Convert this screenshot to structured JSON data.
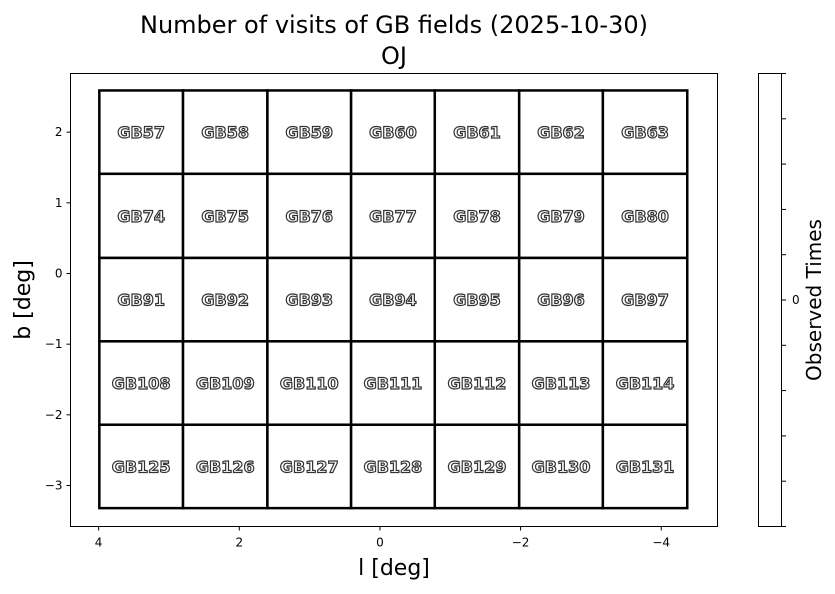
{
  "chart_data": {
    "type": "heatmap",
    "title": "Number of visits of GB fields (2025-10-30)",
    "subtitle": "OJ",
    "xlabel": "l [deg]",
    "ylabel": "b [deg]",
    "xlim": [
      4.4,
      -4.8
    ],
    "ylim": [
      -3.58,
      2.83
    ],
    "x_ticks": [
      4,
      2,
      0,
      -2,
      -4
    ],
    "x_tick_labels": [
      "4",
      "2",
      "0",
      "−2",
      "−4"
    ],
    "y_ticks": [
      2,
      1,
      0,
      -1,
      -2,
      -3
    ],
    "y_tick_labels": [
      "2",
      "1",
      "0",
      "−1",
      "−2",
      "−3"
    ],
    "grid": false,
    "l_edges": [
      3.99,
      2.8,
      1.6,
      0.41,
      -0.78,
      -1.98,
      -3.17,
      -4.37
    ],
    "b_edges": [
      2.59,
      1.41,
      0.22,
      -0.96,
      -2.14,
      -3.32
    ],
    "fields": [
      [
        "GB57",
        "GB58",
        "GB59",
        "GB60",
        "GB61",
        "GB62",
        "GB63"
      ],
      [
        "GB74",
        "GB75",
        "GB76",
        "GB77",
        "GB78",
        "GB79",
        "GB80"
      ],
      [
        "GB91",
        "GB92",
        "GB93",
        "GB94",
        "GB95",
        "GB96",
        "GB97"
      ],
      [
        "GB108",
        "GB109",
        "GB110",
        "GB111",
        "GB112",
        "GB113",
        "GB114"
      ],
      [
        "GB125",
        "GB126",
        "GB127",
        "GB128",
        "GB129",
        "GB130",
        "GB131"
      ]
    ],
    "values_all": 0,
    "colorbar": {
      "label": "Observed Times",
      "tick_labels": [
        "0"
      ],
      "color": "#ffffff"
    }
  }
}
